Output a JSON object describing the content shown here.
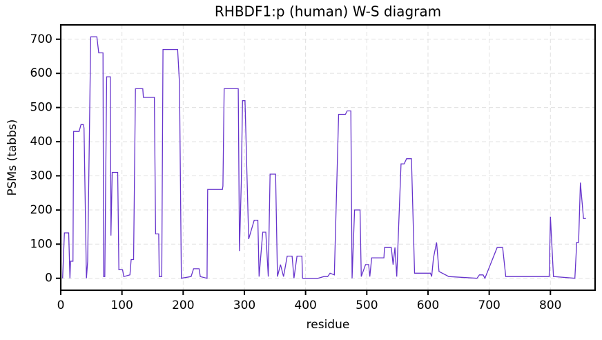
{
  "chart_data": {
    "type": "line",
    "title": "RHBDF1:p (human) W-S diagram",
    "xlabel": "residue",
    "ylabel": "PSMs (tabbs)",
    "x": [
      3,
      6,
      13,
      15,
      16,
      20,
      21,
      30,
      33,
      37,
      38,
      42,
      44,
      49,
      59,
      62,
      69,
      70,
      72,
      75,
      81,
      82,
      84,
      93,
      95,
      101,
      103,
      113,
      115,
      119,
      122,
      134,
      135,
      153,
      155,
      160,
      161,
      165,
      167,
      191,
      194,
      197,
      213,
      217,
      226,
      228,
      239,
      240,
      264,
      265,
      267,
      290,
      292,
      295,
      297,
      301,
      307,
      316,
      322,
      324,
      330,
      335,
      339,
      342,
      351,
      354,
      359,
      364,
      370,
      378,
      381,
      386,
      394,
      395,
      420,
      430,
      436,
      440,
      447,
      454,
      465,
      468,
      474,
      476,
      480,
      489,
      491,
      498,
      503,
      505,
      508,
      528,
      529,
      540,
      543,
      546,
      549,
      556,
      561,
      565,
      573,
      578,
      604,
      606,
      609,
      614,
      618,
      634,
      680,
      684,
      690,
      693,
      713,
      722,
      727,
      798,
      800,
      805,
      840,
      843,
      846,
      849,
      854,
      858
    ],
    "values": [
      0,
      133,
      133,
      0,
      50,
      50,
      430,
      430,
      450,
      450,
      440,
      0,
      50,
      707,
      707,
      660,
      660,
      5,
      5,
      590,
      590,
      125,
      310,
      310,
      25,
      25,
      5,
      10,
      55,
      55,
      555,
      555,
      530,
      530,
      130,
      130,
      5,
      5,
      670,
      670,
      570,
      0,
      5,
      28,
      28,
      5,
      0,
      260,
      260,
      270,
      555,
      555,
      80,
      280,
      520,
      520,
      115,
      170,
      170,
      5,
      135,
      135,
      5,
      305,
      305,
      5,
      40,
      5,
      65,
      65,
      0,
      65,
      65,
      0,
      0,
      5,
      5,
      15,
      10,
      480,
      480,
      490,
      490,
      0,
      200,
      200,
      5,
      40,
      40,
      5,
      60,
      60,
      90,
      90,
      40,
      90,
      5,
      335,
      335,
      350,
      350,
      15,
      15,
      5,
      60,
      105,
      20,
      5,
      0,
      10,
      10,
      0,
      90,
      90,
      5,
      5,
      180,
      5,
      0,
      105,
      105,
      280,
      175,
      175
    ],
    "color": "#6633cc",
    "xlim": [
      0,
      873
    ],
    "ylim": [
      -35,
      742
    ],
    "xticks": [
      0,
      100,
      200,
      300,
      400,
      500,
      600,
      700,
      800
    ],
    "yticks": [
      0,
      100,
      200,
      300,
      400,
      500,
      600,
      700
    ],
    "grid": true
  }
}
